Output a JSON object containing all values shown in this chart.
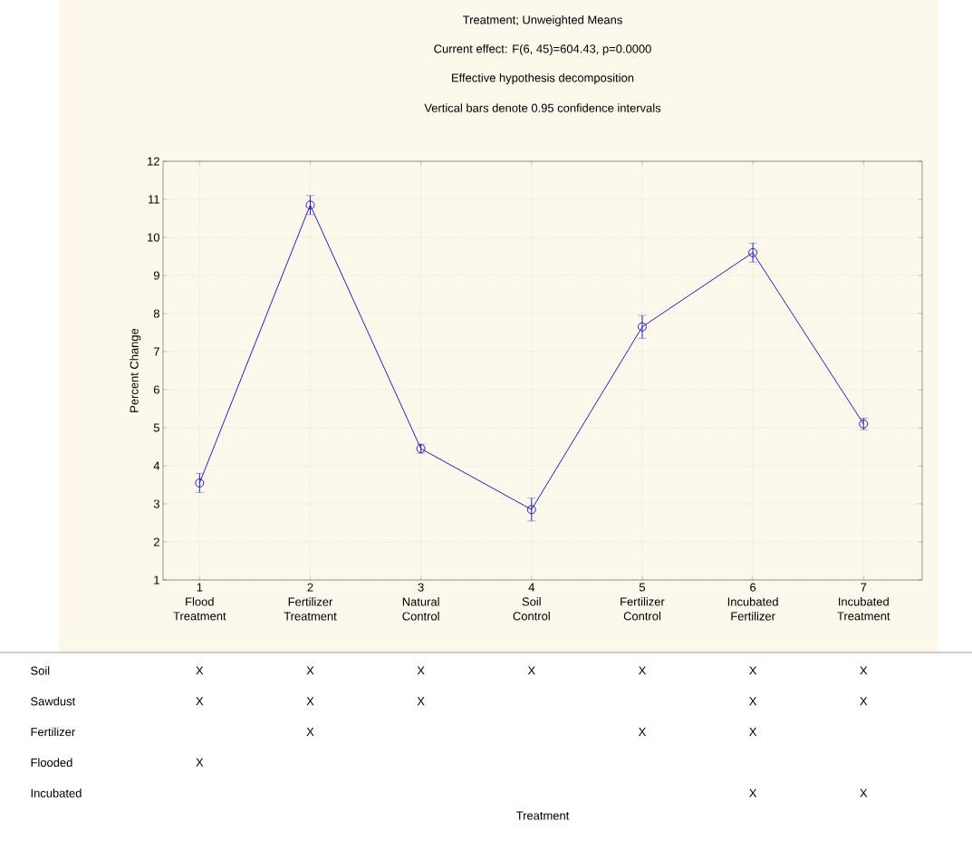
{
  "chart_data": [
    {
      "type": "line",
      "title": "Treatment; Unweighted Means",
      "subtitle": "Current effect: F(6, 45)=604.43, p=0.0000",
      "annotations": [
        "Effective hypothesis decomposition",
        "Vertical bars denote 0.95 confidence intervals"
      ],
      "ylabel": "Percent Change",
      "categories": [
        "1 Flood Treatment",
        "2 Fertilizer Treatment",
        "3 Natural Control",
        "4 Soil Control",
        "5 Fertilizer Control",
        "6 Incubated Fertilizer",
        "7 Incubated Treatment"
      ],
      "series": [
        {
          "color": "#2020b8",
          "values": [
            3.55,
            10.85,
            4.45,
            2.85,
            7.65,
            9.6,
            5.1
          ],
          "errors": [
            0.25,
            0.25,
            0.12,
            0.3,
            0.3,
            0.25,
            0.15
          ]
        }
      ],
      "ylim": [
        1,
        12
      ],
      "yticks": [
        1,
        2,
        3,
        4,
        5,
        6,
        7,
        8,
        9,
        10,
        11,
        12
      ],
      "grid": true,
      "marker": "circle",
      "line_style": "solid"
    },
    {
      "type": "other",
      "xlabel": "Treatment",
      "y_categories": [
        "Soil",
        "Sawdust",
        "Fertilizer",
        "Flooded",
        "Incubated"
      ],
      "cell_labels": [
        [
          "X",
          "X",
          "X",
          "X",
          "X",
          "X",
          "X"
        ],
        [
          "X",
          "X",
          "X",
          null,
          null,
          "X",
          "X"
        ],
        [
          null,
          "X",
          null,
          null,
          "X",
          "X",
          null
        ],
        [
          "X",
          null,
          null,
          null,
          null,
          null,
          null
        ],
        [
          null,
          null,
          null,
          null,
          null,
          "X",
          "X"
        ]
      ]
    }
  ]
}
